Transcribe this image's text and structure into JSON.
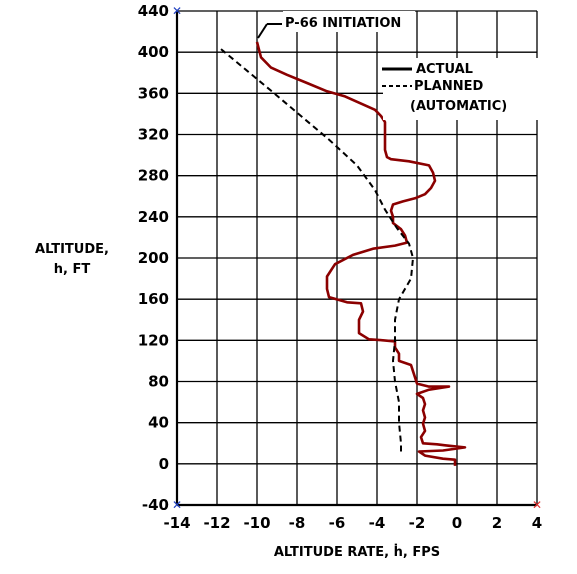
{
  "chart_data": {
    "type": "line",
    "xlabel": "ALTITUDE RATE, ḣ, FPS",
    "ylabel_line1": "ALTITUDE,",
    "ylabel_line2": "h, FT",
    "xlim": [
      -14,
      4
    ],
    "ylim": [
      -40,
      440
    ],
    "x_ticks": [
      -14,
      -12,
      -10,
      -8,
      -6,
      -4,
      -2,
      0,
      2,
      4
    ],
    "y_ticks": [
      -40,
      0,
      40,
      80,
      120,
      160,
      200,
      240,
      280,
      320,
      360,
      400,
      440
    ],
    "grid": true,
    "legend": {
      "position": "top-right",
      "actual_label": "ACTUAL",
      "planned_label_line1": "PLANNED",
      "planned_label_line2": "(AUTOMATIC)"
    },
    "annotation": {
      "text": "P-66 INITIATION",
      "x": -10,
      "y": 410
    },
    "series": [
      {
        "name": "ACTUAL",
        "style": "solid",
        "color": "#8b0000",
        "points": [
          [
            -10,
            410
          ],
          [
            -9.8,
            395
          ],
          [
            -9.3,
            385
          ],
          [
            -8.5,
            378
          ],
          [
            -7.5,
            370
          ],
          [
            -6.5,
            362
          ],
          [
            -5.6,
            357
          ],
          [
            -4.8,
            350
          ],
          [
            -4.1,
            344
          ],
          [
            -3.8,
            338
          ],
          [
            -3.6,
            332
          ],
          [
            -3.6,
            320
          ],
          [
            -3.6,
            305
          ],
          [
            -3.5,
            298
          ],
          [
            -3.3,
            296
          ],
          [
            -2.4,
            294
          ],
          [
            -1.4,
            290
          ],
          [
            -1.2,
            283
          ],
          [
            -1.1,
            275
          ],
          [
            -1.3,
            268
          ],
          [
            -1.6,
            262
          ],
          [
            -2.1,
            258
          ],
          [
            -2.7,
            255
          ],
          [
            -3.2,
            252
          ],
          [
            -3.3,
            246
          ],
          [
            -3.2,
            240
          ],
          [
            -3.2,
            234
          ],
          [
            -2.8,
            228
          ],
          [
            -2.6,
            222
          ],
          [
            -2.5,
            215
          ],
          [
            -3.1,
            212
          ],
          [
            -4.2,
            209
          ],
          [
            -5.2,
            203
          ],
          [
            -6.1,
            194
          ],
          [
            -6.5,
            182
          ],
          [
            -6.5,
            170
          ],
          [
            -6.4,
            162
          ],
          [
            -5.5,
            157
          ],
          [
            -4.8,
            156
          ],
          [
            -4.7,
            148
          ],
          [
            -4.9,
            140
          ],
          [
            -4.9,
            127
          ],
          [
            -4.4,
            121
          ],
          [
            -3.7,
            120
          ],
          [
            -3.1,
            119
          ],
          [
            -3.1,
            113
          ],
          [
            -2.9,
            107
          ],
          [
            -2.9,
            100
          ],
          [
            -2.3,
            96
          ],
          [
            -2.2,
            90
          ],
          [
            -2.1,
            84
          ],
          [
            -2.0,
            78
          ],
          [
            -1.4,
            75
          ],
          [
            -0.4,
            75
          ],
          [
            -1.4,
            72
          ],
          [
            -2.0,
            68
          ],
          [
            -1.7,
            64
          ],
          [
            -1.6,
            58
          ],
          [
            -1.7,
            52
          ],
          [
            -1.6,
            45
          ],
          [
            -1.7,
            39
          ],
          [
            -1.6,
            32
          ],
          [
            -1.8,
            26
          ],
          [
            -1.7,
            20
          ],
          [
            -1.0,
            19
          ],
          [
            -0.6,
            18
          ],
          [
            0.4,
            16
          ],
          [
            -0.7,
            13
          ],
          [
            -1.9,
            12
          ],
          [
            -1.6,
            8
          ],
          [
            -0.7,
            5
          ],
          [
            -0.1,
            4
          ],
          [
            -0.1,
            -2
          ]
        ]
      },
      {
        "name": "PLANNED (AUTOMATIC)",
        "style": "dashed",
        "color": "#000000",
        "points": [
          [
            -11.8,
            403
          ],
          [
            -10.5,
            382
          ],
          [
            -9.2,
            361
          ],
          [
            -7.8,
            338
          ],
          [
            -6.4,
            315
          ],
          [
            -5.0,
            290
          ],
          [
            -4.1,
            266
          ],
          [
            -3.6,
            247
          ],
          [
            -3.0,
            229
          ],
          [
            -2.4,
            214
          ],
          [
            -2.2,
            200
          ],
          [
            -2.3,
            180
          ],
          [
            -2.9,
            160
          ],
          [
            -3.1,
            140
          ],
          [
            -3.1,
            120
          ],
          [
            -3.2,
            100
          ],
          [
            -3.1,
            80
          ],
          [
            -2.9,
            60
          ],
          [
            -2.9,
            40
          ],
          [
            -2.8,
            20
          ],
          [
            -2.8,
            10
          ]
        ]
      }
    ]
  }
}
